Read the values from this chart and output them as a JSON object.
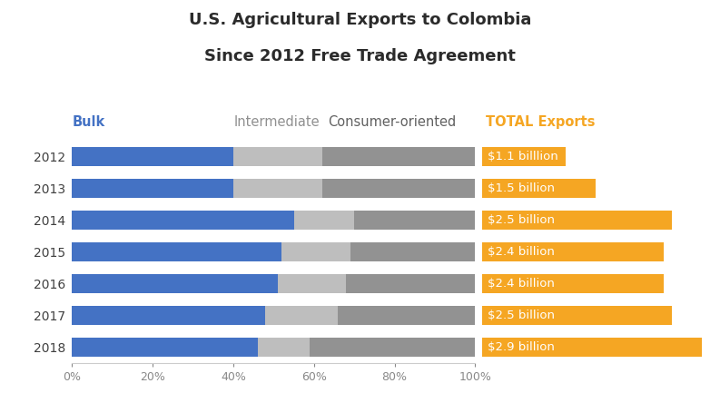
{
  "title_line1": "U.S. Agricultural Exports to Colombia",
  "title_line2": "Since 2012 Free Trade Agreement",
  "years": [
    "2012",
    "2013",
    "2014",
    "2015",
    "2016",
    "2017",
    "2018"
  ],
  "bulk": [
    40,
    40,
    55,
    52,
    51,
    48,
    46
  ],
  "intermediate": [
    22,
    22,
    15,
    17,
    17,
    18,
    13
  ],
  "consumer_oriented": [
    38,
    38,
    30,
    31,
    32,
    34,
    41
  ],
  "totals": [
    "$1.1 billlion",
    "$1.5 billion",
    "$2.5 billion",
    "$2.4 billion",
    "$2.4 billion",
    "$2.5 billion",
    "$2.9 billion"
  ],
  "total_values": [
    1.1,
    1.5,
    2.5,
    2.4,
    2.4,
    2.5,
    2.9
  ],
  "max_total": 2.9,
  "color_bulk": "#4472C4",
  "color_intermediate": "#BEBEBE",
  "color_consumer": "#929292",
  "color_total": "#F5A623",
  "color_bulk_label": "#4472C4",
  "color_intermediate_label": "#909090",
  "color_consumer_label": "#606060",
  "color_total_label": "#F5A623",
  "label_bulk": "Bulk",
  "label_intermediate": "Intermediate",
  "label_consumer": "Consumer-oriented",
  "label_total": "TOTAL Exports",
  "bg_color": "#FFFFFF",
  "bar_height": 0.6
}
